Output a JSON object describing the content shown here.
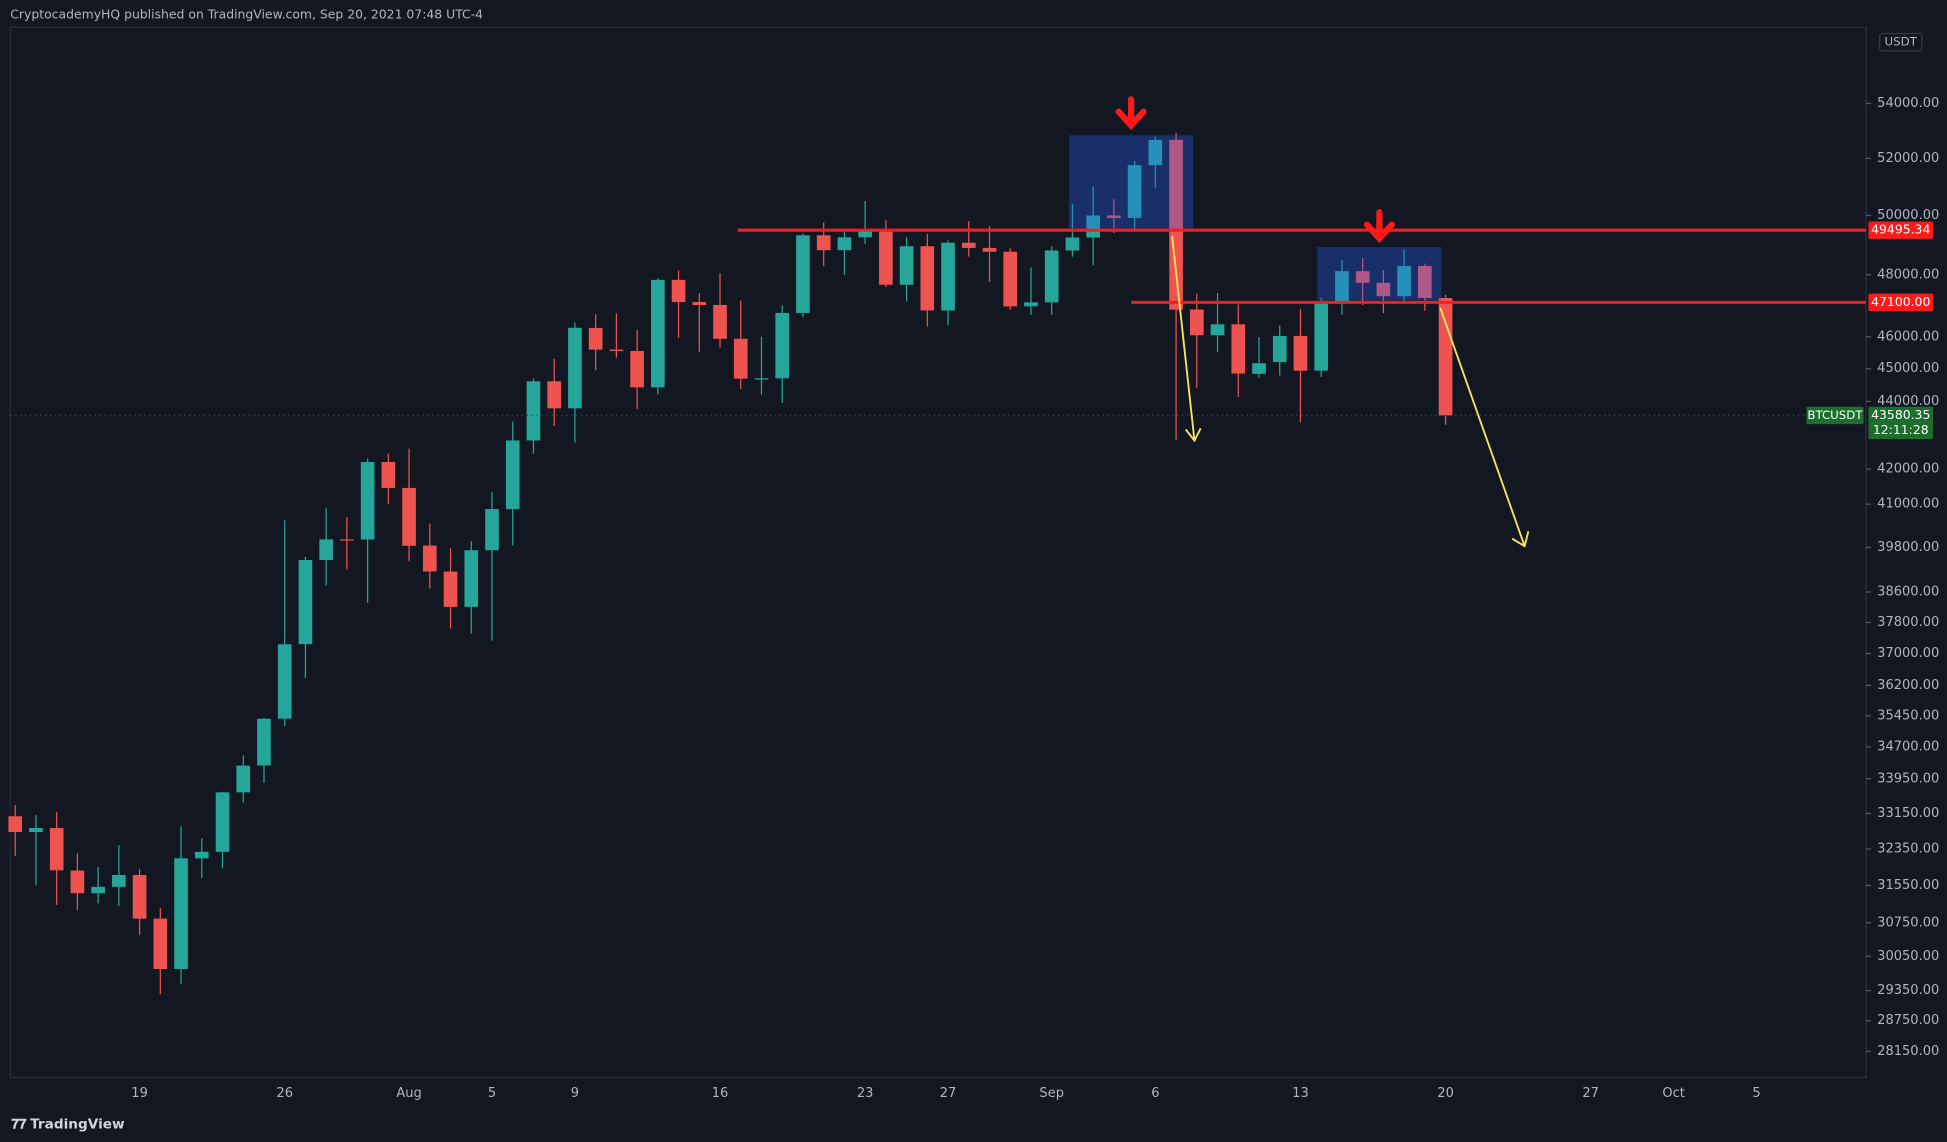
{
  "header": {
    "title": "CryptocademyHQ published on TradingView.com, Sep 20, 2021 07:48 UTC-4"
  },
  "footer": {
    "brand": "TradingView"
  },
  "chart_data": {
    "type": "candlestick",
    "symbol": "BTCUSDT",
    "currency": "USDT",
    "log_scale": true,
    "up_color": "#26a69a",
    "down_color": "#ef5350",
    "categories": [
      null,
      null,
      null,
      null,
      null,
      null,
      "19",
      null,
      null,
      null,
      null,
      null,
      null,
      "26",
      null,
      null,
      null,
      null,
      null,
      "Aug",
      null,
      null,
      null,
      "5",
      null,
      null,
      null,
      "9",
      null,
      null,
      null,
      null,
      null,
      null,
      "16",
      null,
      null,
      null,
      null,
      null,
      null,
      "23",
      null,
      null,
      null,
      "27",
      null,
      null,
      null,
      null,
      "Sep",
      null,
      null,
      null,
      null,
      "6",
      null,
      null,
      null,
      null,
      null,
      null,
      "13",
      null,
      null,
      null,
      null,
      null,
      null,
      "20",
      null,
      null,
      null,
      null,
      null,
      null,
      "27",
      null,
      null,
      null,
      "Oct",
      null,
      null,
      null,
      "5",
      null,
      null,
      null,
      null,
      null
    ],
    "open": [
      33086,
      32730,
      32820,
      31875,
      31383,
      31520,
      31778,
      30839,
      29790,
      32144,
      32287,
      33634,
      34261,
      35381,
      37241,
      39457,
      40019,
      40016,
      42206,
      41461,
      39850,
      39146,
      38207,
      39723,
      40862,
      42836,
      44614,
      43792,
      46280,
      45595,
      45551,
      44428,
      47835,
      47109,
      47016,
      45936,
      44686,
      44705,
      46760,
      49322,
      48821,
      49254,
      49507,
      47674,
      48952,
      46838,
      49070,
      48896,
      48767,
      46971,
      47100,
      48810,
      49246,
      49999,
      49915,
      51756,
      52666,
      46868,
      46048,
      46395,
      44842,
      45206,
      46026,
      44940,
      47103,
      48121,
      47737,
      47300,
      48292,
      47241,
      null,
      null,
      null,
      null,
      null,
      null,
      null,
      null,
      null,
      null,
      null,
      null,
      null,
      null,
      null,
      null,
      null,
      null,
      null,
      null
    ],
    "high": [
      33340,
      33114,
      33185,
      32250,
      31950,
      32435,
      31899,
      31063,
      32858,
      32591,
      33650,
      34500,
      35398,
      40550,
      39542,
      40900,
      40640,
      42316,
      42448,
      42599,
      40459,
      39780,
      39969,
      41350,
      43392,
      44700,
      45310,
      46454,
      46718,
      46743,
      46218,
      47886,
      48144,
      47400,
      48053,
      47160,
      46000,
      47000,
      49382,
      49757,
      49500,
      50500,
      49850,
      49250,
      49370,
      49150,
      49800,
      49633,
      48886,
      48246,
      48950,
      50400,
      51000,
      50558,
      51900,
      52780,
      52920,
      47381,
      47399,
      47033,
      45987,
      46364,
      46880,
      47250,
      48500,
      48557,
      48150,
      48843,
      48372,
      47347,
      null,
      null,
      null,
      null,
      null,
      null,
      null,
      null,
      null,
      null,
      null,
      null,
      null,
      null,
      null,
      null,
      null,
      null,
      null,
      null
    ],
    "low": [
      32200,
      31550,
      31133,
      31020,
      31164,
      31108,
      30500,
      29279,
      29482,
      31708,
      31925,
      33401,
      33851,
      35205,
      36383,
      38772,
      39200,
      38313,
      41000,
      39422,
      38690,
      37642,
      37508,
      37332,
      39853,
      42446,
      43261,
      42779,
      44956,
      45341,
      43770,
      44217,
      45971,
      45525,
      45660,
      44376,
      44203,
      43955,
      46622,
      48285,
      48000,
      49029,
      47600,
      47136,
      46322,
      46366,
      48602,
      47762,
      46853,
      46700,
      46700,
      48600,
      48316,
      49400,
      49500,
      50969,
      42843,
      44412,
      45513,
      44132,
      44722,
      44790,
      43370,
      44750,
      46700,
      47021,
      46750,
      47088,
      46829,
      43300,
      null,
      null,
      null,
      null,
      null,
      null,
      null,
      null,
      null,
      null,
      null,
      null,
      null,
      null,
      null,
      null,
      null,
      null,
      null,
      null
    ],
    "close": [
      32730,
      32820,
      31880,
      31383,
      31520,
      31778,
      30839,
      29790,
      32144,
      32287,
      33634,
      34258,
      35381,
      37237,
      39457,
      40019,
      40016,
      42206,
      41461,
      39845,
      39147,
      38207,
      39723,
      40862,
      42836,
      44614,
      43792,
      46285,
      45595,
      45551,
      44428,
      47833,
      47109,
      47015,
      45936,
      44695,
      44705,
      46760,
      49322,
      48821,
      49254,
      49507,
      47674,
      48952,
      46838,
      49070,
      48896,
      48767,
      46971,
      47100,
      48810,
      49246,
      49999,
      49915,
      51756,
      52663,
      46863,
      46048,
      46395,
      44851,
      45171,
      46026,
      44940,
      47111,
      48122,
      47737,
      47300,
      48293,
      47241,
      43580.35,
      null,
      null,
      null,
      null,
      null,
      null,
      null,
      null,
      null,
      null,
      null,
      null,
      null,
      null,
      null,
      null,
      null,
      null,
      null,
      null
    ],
    "ylim": [
      27650,
      56900
    ],
    "yticks": [
      {
        "value": 54000,
        "label": "54000.00"
      },
      {
        "value": 52000,
        "label": "52000.00"
      },
      {
        "value": 50000,
        "label": "50000.00"
      },
      {
        "value": 48000,
        "label": "48000.00"
      },
      {
        "value": 46000,
        "label": "46000.00"
      },
      {
        "value": 45000,
        "label": "45000.00"
      },
      {
        "value": 44000,
        "label": "44000.00"
      },
      {
        "value": 42000,
        "label": "42000.00"
      },
      {
        "value": 41000,
        "label": "41000.00"
      },
      {
        "value": 39800,
        "label": "39800.00"
      },
      {
        "value": 38600,
        "label": "38600.00"
      },
      {
        "value": 37800,
        "label": "37800.00"
      },
      {
        "value": 37000,
        "label": "37000.00"
      },
      {
        "value": 36200,
        "label": "36200.00"
      },
      {
        "value": 35450,
        "label": "35450.00"
      },
      {
        "value": 34700,
        "label": "34700.00"
      },
      {
        "value": 33950,
        "label": "33950.00"
      },
      {
        "value": 33150,
        "label": "33150.00"
      },
      {
        "value": 32350,
        "label": "32350.00"
      },
      {
        "value": 31550,
        "label": "31550.00"
      },
      {
        "value": 30750,
        "label": "30750.00"
      },
      {
        "value": 30050,
        "label": "30050.00"
      },
      {
        "value": 29350,
        "label": "29350.00"
      },
      {
        "value": 28750,
        "label": "28750.00"
      },
      {
        "value": 28150,
        "label": "28150.00"
      }
    ],
    "levels": [
      {
        "value": 49495.34,
        "label": "49495.34"
      },
      {
        "value": 47100,
        "label": "47100.00"
      }
    ],
    "last_price": {
      "value": 43580.35,
      "label": "43580.35"
    },
    "countdown": "12:11:28"
  }
}
